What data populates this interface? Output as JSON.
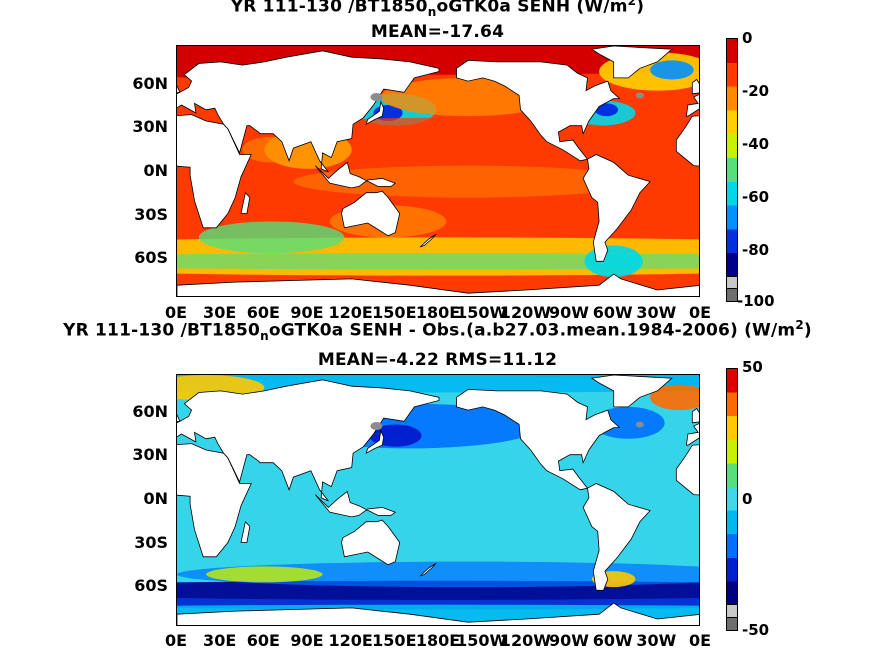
{
  "colors": {
    "land": "#ffffff",
    "coast": "#000000",
    "missing": "#8c8c8c"
  },
  "chart_data": [
    {
      "type": "heatmap",
      "title_main": "YR 111-130 /BT1850",
      "title_sub": "n",
      "title_tail": "oGTK0a  SENH (W/m",
      "title_sup": "2",
      "title_close": ")",
      "subtitle": "MEAN=-17.64",
      "lat_labels": [
        "60N",
        "30N",
        "0N",
        "30S",
        "60S"
      ],
      "lon_labels": [
        "0E",
        "30E",
        "60E",
        "90E",
        "120E",
        "150E",
        "180E",
        "150W",
        "120W",
        "90W",
        "60W",
        "30W",
        "0E"
      ],
      "colorbar_ticks": [
        "0",
        "-20",
        "-40",
        "-60",
        "-80",
        "-100"
      ],
      "colorbar_range": [
        -100,
        0
      ],
      "colorbar_colors": [
        "#d40000",
        "#ff3a00",
        "#ff8a00",
        "#ffd000",
        "#c8f000",
        "#55e07a",
        "#00d8e8",
        "#0090ff",
        "#0030e0",
        "#00008a"
      ],
      "field": {
        "ocean_base": -17,
        "western_boundary_currents": -55,
        "southern_ocean_band": -40,
        "arctic": -2,
        "equatorial_pacific": -12
      }
    },
    {
      "type": "heatmap",
      "title_main": "YR 111-130 /BT1850",
      "title_sub": "n",
      "title_tail": "oGTK0a SENH - Obs.(a.b27.03.mean.1984-2006) (W/m",
      "title_sup": "2",
      "title_close": ")",
      "subtitle": "MEAN=-4.22 RMS=11.12",
      "lat_labels": [
        "60N",
        "30N",
        "0N",
        "30S",
        "60S"
      ],
      "lon_labels": [
        "0E",
        "30E",
        "60E",
        "90E",
        "120E",
        "150E",
        "180E",
        "150W",
        "120W",
        "90W",
        "60W",
        "30W",
        "0E"
      ],
      "colorbar_ticks": [
        "50",
        "0",
        "-50"
      ],
      "colorbar_range": [
        -50,
        50
      ],
      "colorbar_colors": [
        "#e00000",
        "#ff6a00",
        "#ffc800",
        "#c8f000",
        "#55e07a",
        "#3fd8e8",
        "#00b8f0",
        "#0070ff",
        "#0020d0",
        "#000080"
      ],
      "field": {
        "ocean_base": -4,
        "southern_ocean_band": -30,
        "north_pacific": -25,
        "arctic": 10
      }
    }
  ]
}
